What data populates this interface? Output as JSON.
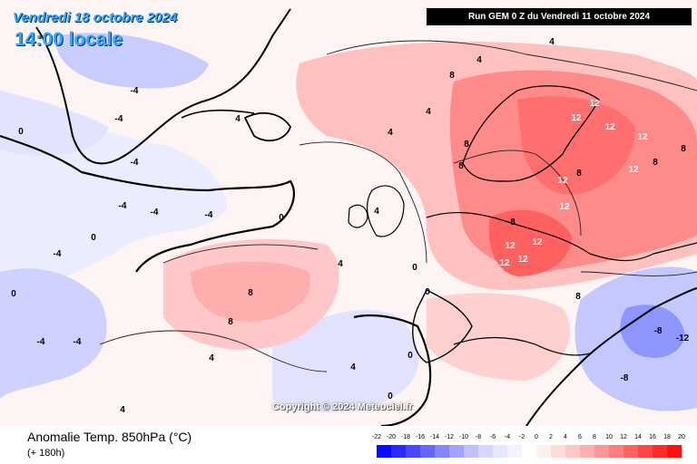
{
  "header": {
    "date": "Vendredi 18 octobre 2024",
    "time": "14:00 locale",
    "run": "Run GEM 0 Z du Vendredi 11 octobre 2024"
  },
  "copyright": "Copyright © 2024 Meteociel.fr",
  "footer": {
    "variable": "Anomalie Temp. 850hPa (°C)",
    "lead": "(+ 180h)"
  },
  "legend": {
    "labels": [
      "-22",
      "-20",
      "-18",
      "-16",
      "-14",
      "-12",
      "-10",
      "-8",
      "-6",
      "-4",
      "-2",
      "0",
      "2",
      "4",
      "6",
      "8",
      "10",
      "12",
      "14",
      "16",
      "18",
      "20"
    ],
    "colors": [
      "#0a0aff",
      "#2a2aff",
      "#4848ff",
      "#6666ff",
      "#8585ff",
      "#a3a3ff",
      "#c0c0ff",
      "#d6d6ff",
      "#e6e6ff",
      "#f3f3ff",
      "#ffffff",
      "#fff0f0",
      "#ffdcdc",
      "#ffc6c6",
      "#ffafaf",
      "#ff9696",
      "#ff7d7d",
      "#ff6262",
      "#ff4646",
      "#ff2a2a",
      "#ff1010"
    ]
  },
  "map": {
    "contour_labels": [
      {
        "text": "-4",
        "value": -4
      },
      {
        "text": "-4",
        "value": -4
      },
      {
        "text": "-4",
        "value": -4
      },
      {
        "text": "-4",
        "value": -4
      },
      {
        "text": "-4",
        "value": -4
      },
      {
        "text": "-4",
        "value": -4
      },
      {
        "text": "-4",
        "value": -4
      },
      {
        "text": "-4",
        "value": -4
      },
      {
        "text": "-4",
        "value": -4
      },
      {
        "text": "-8",
        "value": -8
      },
      {
        "text": "-8",
        "value": -8
      },
      {
        "text": "-12",
        "value": -12
      },
      {
        "text": "0",
        "value": 0
      },
      {
        "text": "0",
        "value": 0
      },
      {
        "text": "0",
        "value": 0
      },
      {
        "text": "0",
        "value": 0
      },
      {
        "text": "0",
        "value": 0
      },
      {
        "text": "0",
        "value": 0
      },
      {
        "text": "0",
        "value": 0
      },
      {
        "text": "0",
        "value": 0
      },
      {
        "text": "4",
        "value": 4
      },
      {
        "text": "4",
        "value": 4
      },
      {
        "text": "4",
        "value": 4
      },
      {
        "text": "4",
        "value": 4
      },
      {
        "text": "4",
        "value": 4
      },
      {
        "text": "4",
        "value": 4
      },
      {
        "text": "4",
        "value": 4
      },
      {
        "text": "4",
        "value": 4
      },
      {
        "text": "4",
        "value": 4
      },
      {
        "text": "4",
        "value": 4
      },
      {
        "text": "8",
        "value": 8
      },
      {
        "text": "8",
        "value": 8
      },
      {
        "text": "8",
        "value": 8
      },
      {
        "text": "8",
        "value": 8
      },
      {
        "text": "8",
        "value": 8
      },
      {
        "text": "8",
        "value": 8
      },
      {
        "text": "8",
        "value": 8
      },
      {
        "text": "8",
        "value": 8
      },
      {
        "text": "8",
        "value": 8
      },
      {
        "text": "8",
        "value": 8
      },
      {
        "text": "12",
        "value": 12
      },
      {
        "text": "12",
        "value": 12
      },
      {
        "text": "12",
        "value": 12
      },
      {
        "text": "12",
        "value": 12
      },
      {
        "text": "12",
        "value": 12
      },
      {
        "text": "12",
        "value": 12
      },
      {
        "text": "12",
        "value": 12
      },
      {
        "text": "12",
        "value": 12
      },
      {
        "text": "12",
        "value": 12
      },
      {
        "text": "12",
        "value": 12
      },
      {
        "text": "12",
        "value": 12
      }
    ]
  }
}
